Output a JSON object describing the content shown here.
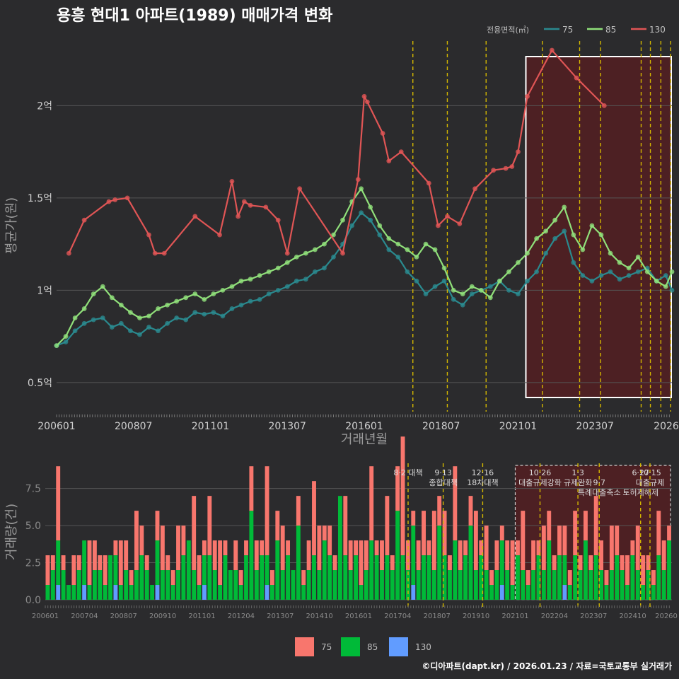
{
  "title": "용흥 현대1 아파트(1989) 매매가격 변화",
  "credit": "©디아파트(dapt.kr) / 2026.01.23 / 자료=국토교통부 실거래가",
  "colors": {
    "s75": "#2a8a8f",
    "s85": "#90e07a",
    "s130": "#e05555",
    "bar75": "#f8766d",
    "bar85": "#00ba38",
    "bar130": "#619cff",
    "policy": "#d4b800",
    "highlight": "#5a1e20"
  },
  "chart_data": [
    {
      "type": "line",
      "title": "용흥 현대1 아파트(1989) 매매가격 변화",
      "xlabel": "거래년월",
      "ylabel": "평균가(원)",
      "legend_title": "전용면적(㎡)",
      "legend_position": "top-right",
      "x_range": [
        2006.0,
        2026.0
      ],
      "ylim": [
        0.35,
        2.35
      ],
      "x_ticks": [
        "200601",
        "200807",
        "201101",
        "201307",
        "201601",
        "201807",
        "202101",
        "202307",
        "2026"
      ],
      "y_ticks": [
        "0.5억",
        "1억",
        "1.5억",
        "2억"
      ],
      "y_tick_values": [
        0.5,
        1.0,
        1.5,
        2.0
      ],
      "policy_lines": [
        2017.58,
        2018.7,
        2019.96,
        2021.79,
        2023.0,
        2023.68,
        2025.0,
        2025.3,
        2025.64,
        2025.96
      ],
      "highlight_range": [
        2021.0,
        2026.0
      ],
      "series": [
        {
          "name": "75",
          "x": [
            2006.0,
            2006.3,
            2006.6,
            2006.9,
            2007.2,
            2007.5,
            2007.8,
            2008.1,
            2008.4,
            2008.7,
            2009.0,
            2009.3,
            2009.6,
            2009.9,
            2010.2,
            2010.5,
            2010.8,
            2011.1,
            2011.4,
            2011.7,
            2012.0,
            2012.3,
            2012.6,
            2012.9,
            2013.2,
            2013.5,
            2013.8,
            2014.1,
            2014.4,
            2014.7,
            2015.0,
            2015.3,
            2015.6,
            2015.9,
            2016.2,
            2016.5,
            2016.8,
            2017.1,
            2017.4,
            2017.7,
            2018.0,
            2018.3,
            2018.6,
            2018.9,
            2019.2,
            2019.5,
            2019.8,
            2020.1,
            2020.4,
            2020.7,
            2021.0,
            2021.3,
            2021.6,
            2021.9,
            2022.2,
            2022.5,
            2022.8,
            2023.1,
            2023.4,
            2023.7,
            2024.0,
            2024.3,
            2024.6,
            2024.9,
            2025.2,
            2025.5,
            2025.8,
            2026.0
          ],
          "values": [
            0.7,
            0.72,
            0.78,
            0.82,
            0.84,
            0.85,
            0.8,
            0.82,
            0.78,
            0.76,
            0.8,
            0.78,
            0.82,
            0.85,
            0.84,
            0.88,
            0.87,
            0.88,
            0.86,
            0.9,
            0.92,
            0.94,
            0.95,
            0.98,
            1.0,
            1.02,
            1.05,
            1.06,
            1.1,
            1.12,
            1.18,
            1.25,
            1.35,
            1.42,
            1.38,
            1.3,
            1.22,
            1.18,
            1.1,
            1.05,
            0.98,
            1.02,
            1.05,
            0.95,
            0.92,
            0.98,
            1.0,
            1.02,
            1.05,
            1.0,
            0.98,
            1.05,
            1.1,
            1.2,
            1.28,
            1.32,
            1.15,
            1.08,
            1.05,
            1.08,
            1.1,
            1.06,
            1.08,
            1.1,
            1.12,
            1.05,
            1.08,
            1.0
          ]
        },
        {
          "name": "85",
          "x": [
            2006.0,
            2006.3,
            2006.6,
            2006.9,
            2007.2,
            2007.5,
            2007.8,
            2008.1,
            2008.4,
            2008.7,
            2009.0,
            2009.3,
            2009.6,
            2009.9,
            2010.2,
            2010.5,
            2010.8,
            2011.1,
            2011.4,
            2011.7,
            2012.0,
            2012.3,
            2012.6,
            2012.9,
            2013.2,
            2013.5,
            2013.8,
            2014.1,
            2014.4,
            2014.7,
            2015.0,
            2015.3,
            2015.6,
            2015.9,
            2016.2,
            2016.5,
            2016.8,
            2017.1,
            2017.4,
            2017.7,
            2018.0,
            2018.3,
            2018.6,
            2018.9,
            2019.2,
            2019.5,
            2019.8,
            2020.1,
            2020.4,
            2020.7,
            2021.0,
            2021.3,
            2021.6,
            2021.9,
            2022.2,
            2022.5,
            2022.8,
            2023.1,
            2023.4,
            2023.7,
            2024.0,
            2024.3,
            2024.6,
            2024.9,
            2025.2,
            2025.5,
            2025.8,
            2026.0
          ],
          "values": [
            0.7,
            0.75,
            0.85,
            0.9,
            0.98,
            1.02,
            0.96,
            0.92,
            0.88,
            0.85,
            0.86,
            0.9,
            0.92,
            0.94,
            0.96,
            0.98,
            0.95,
            0.98,
            1.0,
            1.02,
            1.05,
            1.06,
            1.08,
            1.1,
            1.12,
            1.15,
            1.18,
            1.2,
            1.22,
            1.25,
            1.3,
            1.38,
            1.48,
            1.55,
            1.45,
            1.35,
            1.28,
            1.25,
            1.22,
            1.18,
            1.25,
            1.22,
            1.12,
            1.0,
            0.98,
            1.02,
            1.0,
            0.96,
            1.05,
            1.1,
            1.15,
            1.2,
            1.28,
            1.32,
            1.38,
            1.45,
            1.3,
            1.22,
            1.35,
            1.3,
            1.2,
            1.15,
            1.12,
            1.18,
            1.1,
            1.05,
            1.02,
            1.1
          ]
        },
        {
          "name": "130",
          "x": [
            2006.4,
            2006.9,
            2007.7,
            2007.9,
            2008.3,
            2009.0,
            2009.2,
            2009.5,
            2010.5,
            2011.3,
            2011.7,
            2011.9,
            2012.1,
            2012.3,
            2012.8,
            2013.2,
            2013.5,
            2013.9,
            2015.3,
            2015.8,
            2016.0,
            2016.1,
            2016.6,
            2016.8,
            2017.2,
            2018.1,
            2018.4,
            2018.7,
            2019.1,
            2019.6,
            2020.2,
            2020.6,
            2020.8,
            2021.0,
            2021.3,
            2022.1,
            2022.9,
            2023.8
          ],
          "values": [
            1.2,
            1.38,
            1.48,
            1.49,
            1.5,
            1.3,
            1.2,
            1.2,
            1.4,
            1.3,
            1.59,
            1.4,
            1.48,
            1.46,
            1.45,
            1.38,
            1.2,
            1.55,
            1.2,
            1.6,
            2.05,
            2.02,
            1.85,
            1.7,
            1.75,
            1.58,
            1.35,
            1.4,
            1.36,
            1.55,
            1.65,
            1.66,
            1.67,
            1.75,
            2.05,
            2.3,
            2.15,
            2.0
          ]
        }
      ]
    },
    {
      "type": "bar",
      "xlabel": "",
      "ylabel": "거래량(건)",
      "ylim": [
        0,
        9.2
      ],
      "y_ticks": [
        "0.0",
        "2.5",
        "5.0",
        "7.5"
      ],
      "y_tick_values": [
        0,
        2.5,
        5.0,
        7.5
      ],
      "x_ticks": [
        "200601",
        "200704",
        "200807",
        "200910",
        "201101",
        "201204",
        "201307",
        "201410",
        "201601",
        "201704",
        "201807",
        "201910",
        "202101",
        "202204",
        "202307",
        "202410",
        "20260"
      ],
      "legend": [
        "75",
        "85",
        "130"
      ],
      "legend_position": "bottom",
      "highlight_range": [
        2021.0,
        2026.0
      ],
      "policy_annotations": [
        {
          "x": 2017.58,
          "lines": [
            "8·2 대책"
          ]
        },
        {
          "x": 2018.7,
          "lines": [
            "9·13",
            "종합대책"
          ]
        },
        {
          "x": 2019.96,
          "lines": [
            "12·16",
            "18차대책"
          ]
        },
        {
          "x": 2021.79,
          "lines": [
            "10·26",
            "대출규제강화"
          ]
        },
        {
          "x": 2023.0,
          "lines": [
            "1·3",
            "규제완화"
          ]
        },
        {
          "x": 2023.68,
          "lines": [
            "",
            "9·7",
            "특례대출축소"
          ]
        },
        {
          "x": 2025.0,
          "lines": [
            "6·27",
            "",
            "토허제해제"
          ]
        },
        {
          "x": 2025.3,
          "lines": [
            "10·15",
            "대출규제"
          ]
        }
      ],
      "series": [
        {
          "name": "75",
          "values": [
            2,
            1,
            5,
            1,
            0,
            2,
            1,
            0,
            3,
            2,
            1,
            2,
            0,
            1,
            3,
            2,
            1,
            4,
            2,
            1,
            0,
            2,
            3,
            1,
            1,
            3,
            2,
            0,
            5,
            2,
            1,
            4,
            2,
            3,
            1,
            0,
            2,
            1,
            1,
            3,
            2,
            1,
            6,
            1,
            2,
            3,
            1,
            0,
            2,
            1,
            2,
            5,
            3,
            1,
            2,
            1,
            0,
            4,
            2,
            1,
            3,
            2,
            5,
            1,
            2,
            4,
            1,
            3,
            8,
            2,
            1,
            2,
            3,
            1,
            4,
            2,
            3,
            1,
            5,
            2,
            1,
            2,
            4,
            1,
            3,
            1,
            2,
            1,
            2,
            3,
            1,
            4,
            1,
            2,
            1,
            3,
            2,
            1,
            2,
            2,
            1,
            3,
            1,
            2,
            1,
            4,
            2,
            1,
            3,
            2,
            1,
            2,
            1,
            3,
            2,
            1,
            1,
            3,
            2,
            1
          ]
        },
        {
          "name": "85",
          "values": [
            1,
            2,
            3,
            2,
            1,
            1,
            2,
            3,
            1,
            2,
            2,
            1,
            3,
            2,
            1,
            2,
            1,
            2,
            3,
            2,
            1,
            3,
            2,
            2,
            1,
            2,
            3,
            4,
            2,
            1,
            2,
            3,
            2,
            1,
            3,
            2,
            2,
            1,
            3,
            6,
            2,
            3,
            2,
            1,
            4,
            2,
            3,
            2,
            5,
            1,
            2,
            3,
            2,
            4,
            3,
            2,
            7,
            3,
            2,
            3,
            1,
            2,
            4,
            3,
            2,
            3,
            2,
            6,
            3,
            2,
            4,
            2,
            3,
            3,
            2,
            5,
            3,
            2,
            4,
            2,
            3,
            5,
            2,
            3,
            2,
            1,
            2,
            3,
            2,
            1,
            3,
            2,
            1,
            2,
            3,
            2,
            4,
            2,
            3,
            2,
            1,
            3,
            2,
            4,
            2,
            3,
            2,
            1,
            2,
            3,
            2,
            1,
            3,
            2,
            1,
            2,
            1,
            3,
            2,
            4
          ]
        },
        {
          "name": "130",
          "values": [
            0,
            0,
            1,
            0,
            0,
            0,
            0,
            1,
            0,
            0,
            0,
            0,
            0,
            1,
            0,
            0,
            0,
            0,
            0,
            0,
            0,
            1,
            0,
            0,
            0,
            0,
            0,
            0,
            0,
            0,
            1,
            0,
            0,
            0,
            0,
            0,
            0,
            0,
            0,
            0,
            0,
            0,
            1,
            0,
            0,
            0,
            0,
            0,
            0,
            0,
            0,
            0,
            0,
            0,
            0,
            0,
            0,
            0,
            0,
            0,
            0,
            0,
            0,
            0,
            0,
            0,
            0,
            0,
            0,
            0,
            1,
            0,
            0,
            0,
            0,
            0,
            0,
            0,
            0,
            0,
            0,
            0,
            0,
            0,
            0,
            0,
            0,
            1,
            0,
            0,
            0,
            0,
            0,
            0,
            0,
            0,
            0,
            0,
            0,
            1,
            0,
            0,
            0,
            0,
            0,
            0,
            0,
            0,
            0,
            0,
            0,
            0,
            0,
            0,
            0,
            0,
            0,
            0,
            0,
            0
          ]
        }
      ]
    }
  ]
}
